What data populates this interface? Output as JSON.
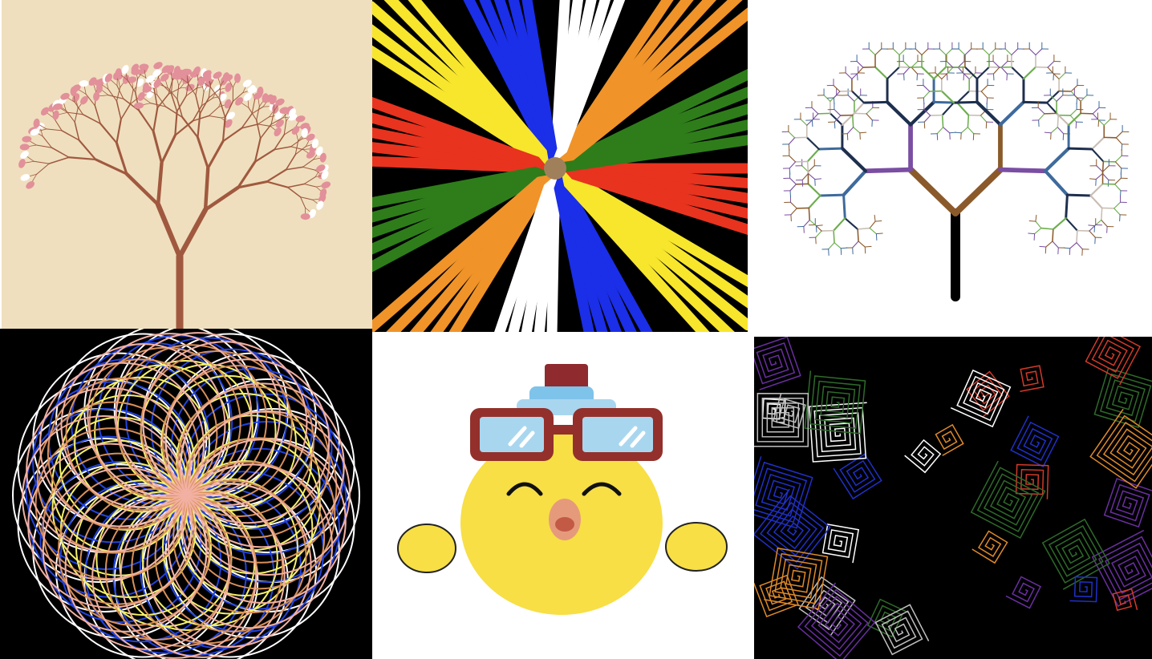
{
  "panels": [
    {
      "name": "cherry-blossom-tree",
      "background": "#efdfbe",
      "colors": {
        "branch": "#a0593f",
        "blossom": "#e2909a",
        "blossom_light": "#ffffff"
      }
    },
    {
      "name": "color-starburst",
      "background": "#000000",
      "colors": [
        "#e8331f",
        "#f7e62c",
        "#1b2ee8",
        "#ffffff",
        "#f09328",
        "#2e7d1a"
      ]
    },
    {
      "name": "fractal-tree",
      "background": "#ffffff",
      "colors": [
        "#1e2f4e",
        "#3e6a9c",
        "#7a4ea3",
        "#8b5a2b",
        "#6cad4d",
        "#c8bdb3",
        "#000000"
      ]
    },
    {
      "name": "spirograph-rosette",
      "background": "#000000",
      "colors": [
        "#f2b0a2",
        "#2244dd",
        "#ffffff",
        "#f4f06a",
        "#d8905a"
      ]
    },
    {
      "name": "chick-with-goggles",
      "background": "#ffffff",
      "colors": {
        "body": "#f7df45",
        "goggles": "#93302b",
        "lens": "#a9d6ef",
        "hat": "#8f2a2e",
        "hat_band": "#7ec3ea",
        "beak": "#e69a7c"
      }
    },
    {
      "name": "spiral-squares",
      "background": "#000000",
      "colors": [
        "#ffffff",
        "#6a2fa0",
        "#2030c8",
        "#e08a2a",
        "#d23a2a",
        "#2e6b2a",
        "#c0c0c0"
      ]
    }
  ]
}
